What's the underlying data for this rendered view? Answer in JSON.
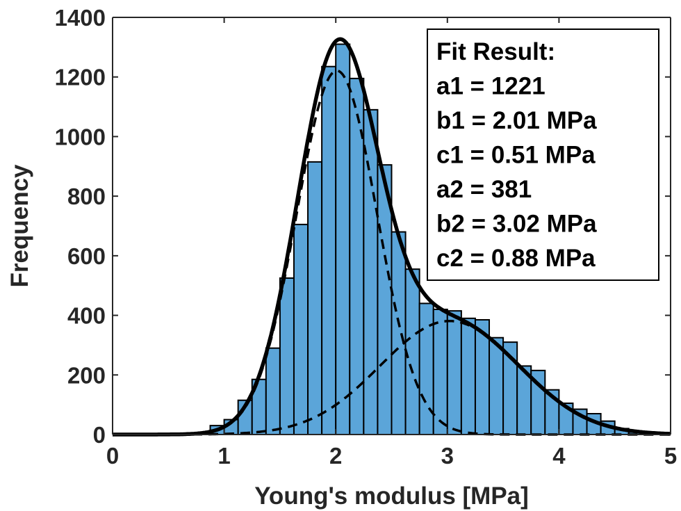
{
  "chart_data": {
    "type": "bar",
    "xlabel": "Young's modulus [MPa]",
    "ylabel": "Frequency",
    "xlim": [
      0,
      5
    ],
    "ylim": [
      0,
      1400
    ],
    "xticks": [
      "0",
      "1",
      "2",
      "3",
      "4",
      "5"
    ],
    "yticks": [
      "0",
      "200",
      "400",
      "600",
      "800",
      "1000",
      "1200",
      "1400"
    ],
    "grid": false,
    "bin_width": 0.125,
    "bins": [
      {
        "x0": 0.875,
        "count": 30
      },
      {
        "x0": 1.0,
        "count": 50
      },
      {
        "x0": 1.125,
        "count": 115
      },
      {
        "x0": 1.25,
        "count": 185
      },
      {
        "x0": 1.375,
        "count": 290
      },
      {
        "x0": 1.5,
        "count": 525
      },
      {
        "x0": 1.625,
        "count": 705
      },
      {
        "x0": 1.75,
        "count": 915
      },
      {
        "x0": 1.875,
        "count": 1235
      },
      {
        "x0": 2.0,
        "count": 1310
      },
      {
        "x0": 2.125,
        "count": 1195
      },
      {
        "x0": 2.25,
        "count": 1090
      },
      {
        "x0": 2.375,
        "count": 905
      },
      {
        "x0": 2.5,
        "count": 680
      },
      {
        "x0": 2.625,
        "count": 555
      },
      {
        "x0": 2.75,
        "count": 440
      },
      {
        "x0": 2.875,
        "count": 420
      },
      {
        "x0": 3.0,
        "count": 415
      },
      {
        "x0": 3.125,
        "count": 390
      },
      {
        "x0": 3.25,
        "count": 385
      },
      {
        "x0": 3.375,
        "count": 325
      },
      {
        "x0": 3.5,
        "count": 310
      },
      {
        "x0": 3.625,
        "count": 230
      },
      {
        "x0": 3.75,
        "count": 215
      },
      {
        "x0": 3.875,
        "count": 150
      },
      {
        "x0": 4.0,
        "count": 105
      },
      {
        "x0": 4.125,
        "count": 85
      },
      {
        "x0": 4.25,
        "count": 70
      },
      {
        "x0": 4.375,
        "count": 45
      },
      {
        "x0": 4.5,
        "count": 20
      },
      {
        "x0": 4.625,
        "count": 8
      }
    ],
    "fit": {
      "components": [
        {
          "a": 1221,
          "b": 2.01,
          "c": 0.51
        },
        {
          "a": 381,
          "b": 3.02,
          "c": 0.88
        }
      ]
    },
    "legend": {
      "position": "top-right",
      "lines": [
        "Fit Result:",
        "a1 = 1221",
        "b1 = 2.01 MPa",
        "c1 = 0.51 MPa",
        "a2 = 381",
        "b2 = 3.02 MPa",
        "c2 = 0.88 MPa"
      ]
    },
    "colors": {
      "bar_fill": "#5BA5D9",
      "bar_edge": "#000000",
      "fit_line": "#000000",
      "axis": "#262626"
    }
  }
}
